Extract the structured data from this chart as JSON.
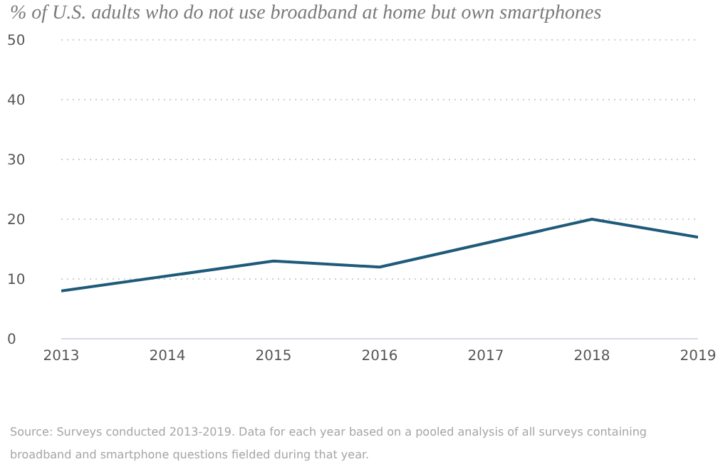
{
  "chart_data": {
    "type": "line",
    "title": "% of U.S. adults who do not use broadband at home but own smartphones",
    "x": [
      2013,
      2015,
      2016,
      2018,
      2019
    ],
    "series": [
      {
        "color": "#1f5a7a",
        "values": [
          8,
          13,
          12,
          20,
          17
        ]
      }
    ],
    "xlim": [
      2013,
      2019
    ],
    "xticks": [
      2013,
      2014,
      2015,
      2016,
      2017,
      2018,
      2019
    ],
    "ylim": [
      0,
      50
    ],
    "yticks": [
      0,
      10,
      20,
      30,
      40,
      50
    ],
    "grid": "y",
    "marker": "none",
    "line_style": "solid",
    "legend": false,
    "annotations": [
      "Source: Surveys conducted 2013-2019. Data for each year based on a pooled analysis of all surveys containing broadband and smartphone questions fielded during that year."
    ]
  }
}
